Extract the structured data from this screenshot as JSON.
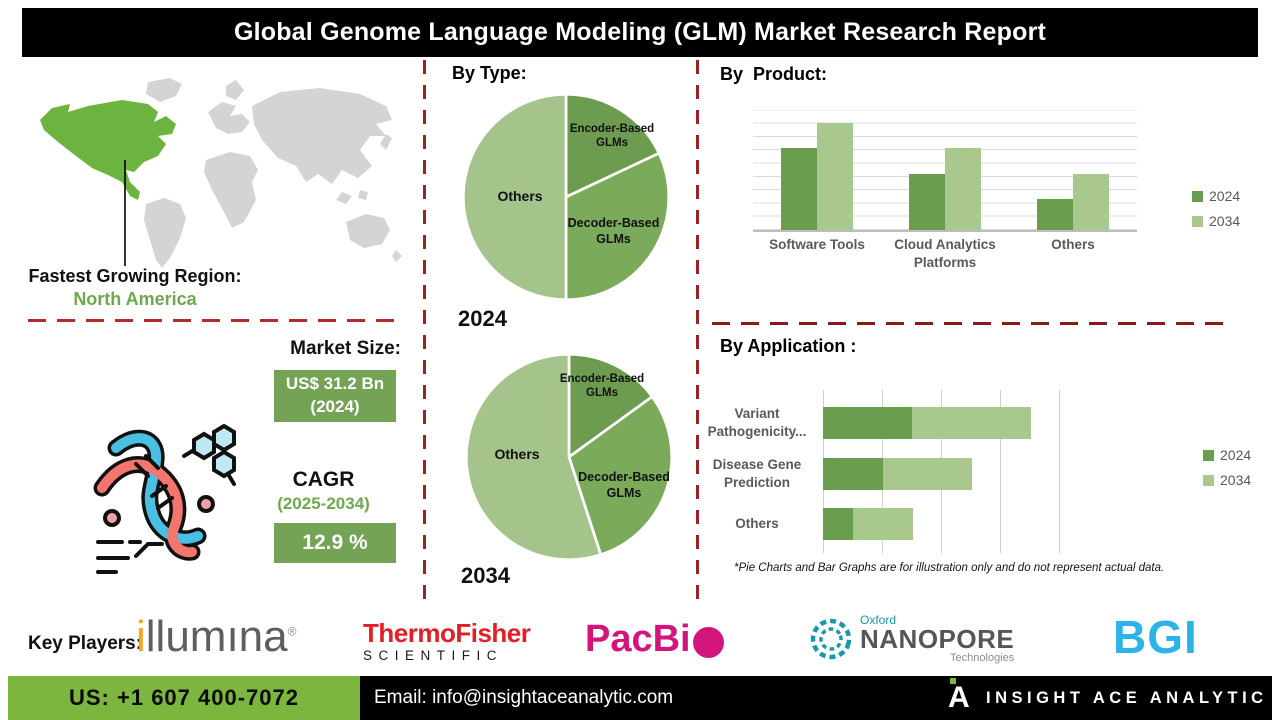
{
  "title": "Global Genome Language Modeling (GLM) Market Research Report",
  "sections": {
    "by_type": "By Type:",
    "by_product": "By  Product:",
    "by_application": "By Application :"
  },
  "map": {
    "caption_label": "Fastest Growing Region:",
    "caption_value": "North America"
  },
  "market": {
    "label": "Market Size:",
    "value_line1": "US$ 31.2 Bn",
    "value_line2": "(2024)",
    "cagr_label": "CAGR",
    "cagr_period": "(2025-2034)",
    "cagr_value": "12.9 %"
  },
  "disclaimer": "*Pie Charts and Bar Graphs are for illustration only and do not represent actual data.",
  "key_players": {
    "label": "Key Players:",
    "players": [
      "illumina",
      "Thermo Fisher Scientific",
      "PacBio",
      "Oxford Nanopore Technologies",
      "BGI"
    ]
  },
  "logos": {
    "illumina": {
      "i": "i",
      "rest": "llumına",
      "reg": "®"
    },
    "thermo": {
      "line1": "ThermoFisher",
      "line2": "SCIENTIFIC"
    },
    "pacbio": {
      "text": "PacBi"
    },
    "nanopore": {
      "oxford": "Oxford",
      "name": "NANOPORE",
      "tech": "Technologies"
    },
    "bgi": {
      "text": "BGI"
    }
  },
  "footer": {
    "phone": "US: +1 607 400-7072",
    "email": "Email: info@insightaceanalytic.com",
    "brand": "INSIGHT ACE ANALYTIC",
    "brand_mark": "A"
  },
  "colors": {
    "green_dark": "#6a9e4f",
    "green_mid": "#7bab5a",
    "green_light": "#a9c88e",
    "na_green": "#6cb33f",
    "dashed_red": "#a52a2a",
    "footer_green": "#7cb63f",
    "box_green": "#75a356"
  },
  "chart_data": [
    {
      "type": "pie",
      "title": "2024",
      "subtitle": "By Type:",
      "labels": [
        "Encoder-Based GLMs",
        "Decoder-Based GLMs",
        "Others"
      ],
      "values": [
        18,
        32,
        50
      ],
      "colors": [
        "#6d9c50",
        "#7bab5a",
        "#a5c48c"
      ],
      "legend_position": "none"
    },
    {
      "type": "pie",
      "title": "2034",
      "subtitle": "By Type:",
      "labels": [
        "Encoder-Based GLMs",
        "Decoder-Based GLMs",
        "Others"
      ],
      "values": [
        15,
        30,
        55
      ],
      "colors": [
        "#6d9c50",
        "#7bab5a",
        "#a5c48c"
      ],
      "legend_position": "none"
    },
    {
      "type": "bar",
      "title": "By Product:",
      "categories": [
        "Software Tools",
        "Cloud Analytics Platforms",
        "Others"
      ],
      "series": [
        {
          "name": "2024",
          "values": [
            6.8,
            4.7,
            2.6
          ]
        },
        {
          "name": "2034",
          "values": [
            8.9,
            6.8,
            4.7
          ]
        }
      ],
      "ylim": [
        0,
        10
      ],
      "grid": true,
      "legend_position": "right",
      "note": "illustrative values, no axis labels shown"
    },
    {
      "type": "bar-horizontal-stacked",
      "title": "By Application :",
      "categories": [
        "Variant Pathogenicity...",
        "Disease Gene Prediction",
        "Others"
      ],
      "series": [
        {
          "name": "2024",
          "values": [
            1.5,
            1.0,
            0.5
          ]
        },
        {
          "name": "2034",
          "values": [
            2.0,
            1.5,
            1.0
          ]
        }
      ],
      "xlim": [
        0,
        4
      ],
      "grid": true,
      "legend_position": "right",
      "note": "illustrative values, no axis labels shown"
    }
  ]
}
